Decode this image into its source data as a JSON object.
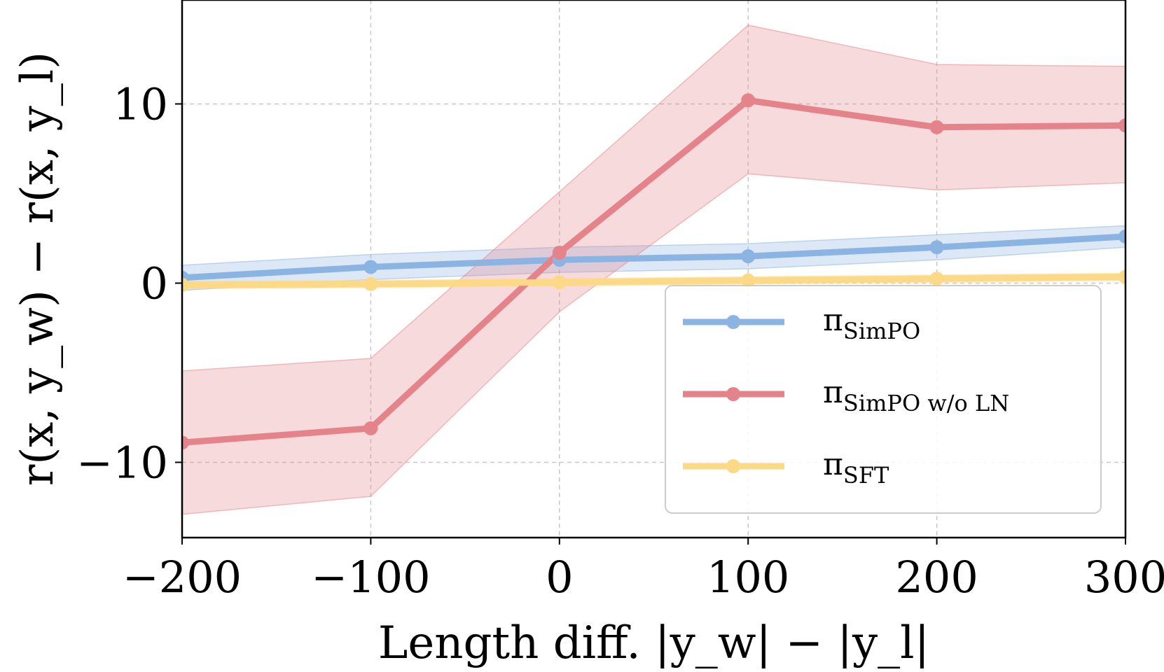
{
  "chart_data": {
    "type": "line",
    "title": "",
    "xlabel": "Length diff. |y_w| − |y_l|",
    "ylabel": "r(x, y_w) − r(x, y_l)",
    "xlim": [
      -200,
      300
    ],
    "ylim": [
      -14.2,
      15.8
    ],
    "xticks": [
      -200,
      -100,
      0,
      100,
      200,
      300
    ],
    "xtick_labels": [
      "−200",
      "−100",
      "0",
      "100",
      "200",
      "300"
    ],
    "yticks": [
      -10,
      0,
      10
    ],
    "ytick_labels": [
      "−10",
      "0",
      "10"
    ],
    "grid": true,
    "legend_position": "lower-right",
    "x": [
      -200,
      -100,
      0,
      100,
      200,
      300
    ],
    "series": [
      {
        "name": "π_SimPO",
        "label_main": "π",
        "label_sub": "SimPO",
        "color": "#8cb4e2",
        "values": [
          0.3,
          0.9,
          1.3,
          1.5,
          2.0,
          2.6
        ],
        "lower": [
          -0.4,
          0.2,
          0.6,
          0.8,
          1.3,
          2.0
        ],
        "upper": [
          1.0,
          1.6,
          2.0,
          2.2,
          2.7,
          3.2
        ]
      },
      {
        "name": "π_SimPO w/o LN",
        "label_main": "π",
        "label_sub": "SimPO w/o LN",
        "color": "#e5838a",
        "values": [
          -8.9,
          -8.1,
          1.7,
          10.2,
          8.7,
          8.8
        ],
        "lower": [
          -12.9,
          -11.9,
          -1.6,
          6.1,
          5.2,
          5.6
        ],
        "upper": [
          -4.9,
          -4.2,
          5.1,
          14.4,
          12.2,
          12.1
        ]
      },
      {
        "name": "π_SFT",
        "label_main": "π",
        "label_sub": "SFT",
        "color": "#fbd986",
        "values": [
          -0.1,
          -0.05,
          0.05,
          0.15,
          0.25,
          0.35
        ],
        "lower": [
          -0.3,
          -0.25,
          -0.15,
          -0.05,
          0.05,
          0.15
        ],
        "upper": [
          0.1,
          0.15,
          0.25,
          0.35,
          0.45,
          0.55
        ]
      }
    ]
  }
}
